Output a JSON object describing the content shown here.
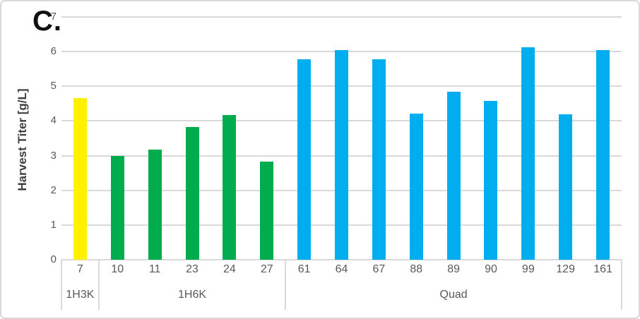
{
  "panel_label": "C.",
  "colors": {
    "bar_yellow": "#FFF100",
    "bar_green": "#00AC4E",
    "bar_blue": "#00AEEF",
    "gridline": "#D9D9D9",
    "tick_text": "#595959",
    "axis_title_text": "#3F3F3F",
    "panel_label_text": "#111111",
    "frame_border": "#D8D8D8"
  },
  "chart_data": {
    "type": "bar",
    "title": "",
    "xlabel": "",
    "ylabel": "Harvest Titer [g/L]",
    "ylim": [
      0,
      7
    ],
    "yticks": [
      0,
      1,
      2,
      3,
      4,
      5,
      6,
      7
    ],
    "grid": true,
    "legend": "none",
    "categories": [
      "7",
      "10",
      "11",
      "23",
      "24",
      "27",
      "61",
      "64",
      "67",
      "88",
      "89",
      "90",
      "99",
      "129",
      "161"
    ],
    "values": [
      4.65,
      3.0,
      3.18,
      3.83,
      4.18,
      2.82,
      5.77,
      6.05,
      5.77,
      4.22,
      4.85,
      4.58,
      6.12,
      4.2,
      6.05
    ],
    "groups": [
      {
        "label": "1H3K",
        "categories": [
          "7"
        ],
        "count": 1,
        "color": "#FFF100"
      },
      {
        "label": "1H6K",
        "categories": [
          "10",
          "11",
          "23",
          "24",
          "27"
        ],
        "count": 5,
        "color": "#00AC4E"
      },
      {
        "label": "Quad",
        "categories": [
          "61",
          "64",
          "67",
          "88",
          "89",
          "90",
          "99",
          "129",
          "161"
        ],
        "count": 9,
        "color": "#00AEEF"
      }
    ]
  }
}
